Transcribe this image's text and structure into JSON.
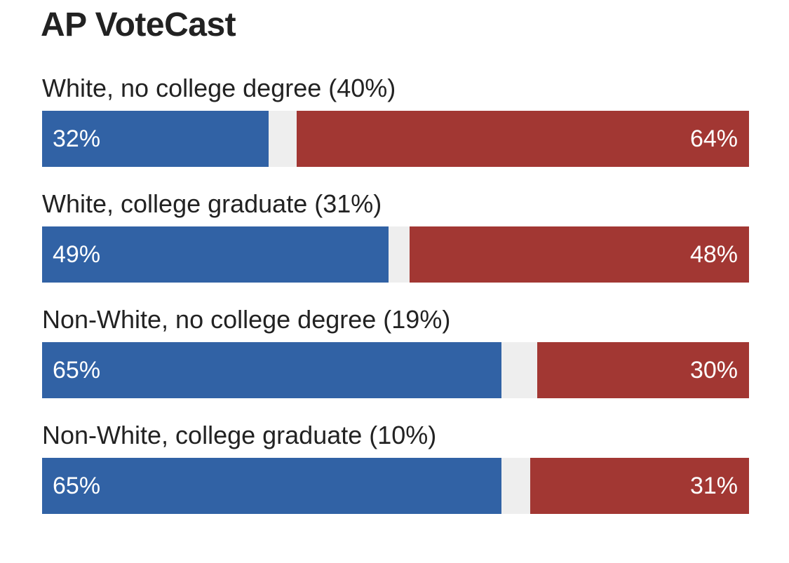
{
  "chart_data": {
    "type": "bar",
    "orientation": "horizontal-stacked",
    "title": "AP VoteCast",
    "categories": [
      "White, no college degree (40%)",
      "White, college graduate (31%)",
      "Non-White, no college degree (19%)",
      "Non-White, college graduate (10%)"
    ],
    "series": [
      {
        "color": "#3162a5",
        "values": [
          32,
          49,
          65,
          65
        ],
        "labels": [
          "32%",
          "49%",
          "65%",
          "65%"
        ],
        "anchor": "left"
      },
      {
        "color": "#a23733",
        "values": [
          64,
          48,
          30,
          31
        ],
        "labels": [
          "64%",
          "48%",
          "30%",
          "31%"
        ],
        "anchor": "right"
      }
    ],
    "remainder_color": "#eeeeee",
    "xlim": [
      0,
      100
    ],
    "grid": false,
    "legend": "none"
  }
}
